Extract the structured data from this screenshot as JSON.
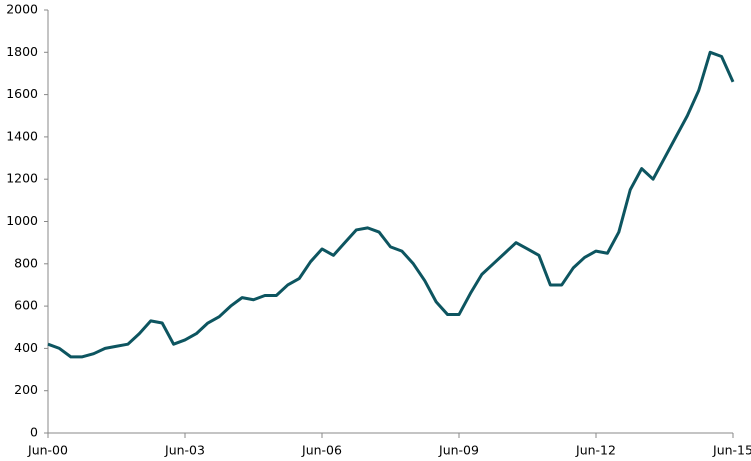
{
  "chart_data": {
    "type": "line",
    "x": [
      "Jun-00",
      "Sep-00",
      "Dec-00",
      "Mar-01",
      "Jun-01",
      "Sep-01",
      "Dec-01",
      "Mar-02",
      "Jun-02",
      "Sep-02",
      "Dec-02",
      "Mar-03",
      "Jun-03",
      "Sep-03",
      "Dec-03",
      "Mar-04",
      "Jun-04",
      "Sep-04",
      "Dec-04",
      "Mar-05",
      "Jun-05",
      "Sep-05",
      "Dec-05",
      "Mar-06",
      "Jun-06",
      "Sep-06",
      "Dec-06",
      "Mar-07",
      "Jun-07",
      "Sep-07",
      "Dec-07",
      "Mar-08",
      "Jun-08",
      "Sep-08",
      "Dec-08",
      "Mar-09",
      "Jun-09",
      "Sep-09",
      "Dec-09",
      "Mar-10",
      "Jun-10",
      "Sep-10",
      "Dec-10",
      "Mar-11",
      "Jun-11",
      "Sep-11",
      "Dec-11",
      "Mar-12",
      "Jun-12",
      "Sep-12",
      "Dec-12",
      "Mar-13",
      "Jun-13",
      "Sep-13",
      "Dec-13",
      "Mar-14",
      "Jun-14",
      "Sep-14",
      "Dec-14",
      "Mar-15",
      "Jun-15"
    ],
    "series": [
      {
        "color": "#0d5560",
        "values": [
          420,
          400,
          360,
          360,
          375,
          400,
          410,
          420,
          470,
          530,
          520,
          420,
          440,
          470,
          520,
          550,
          600,
          640,
          630,
          650,
          650,
          700,
          730,
          810,
          870,
          840,
          900,
          960,
          970,
          950,
          880,
          860,
          800,
          720,
          620,
          560,
          560,
          660,
          750,
          800,
          850,
          900,
          870,
          840,
          700,
          700,
          780,
          830,
          860,
          850,
          950,
          1150,
          1250,
          1200,
          1300,
          1400,
          1500,
          1620,
          1800,
          1780,
          1660
        ]
      }
    ],
    "ylim": [
      0,
      2000
    ],
    "yticks": [
      0,
      200,
      400,
      600,
      800,
      1000,
      1200,
      1400,
      1600,
      1800,
      2000
    ],
    "xticks": [
      "Jun-00",
      "Jun-03",
      "Jun-06",
      "Jun-09",
      "Jun-12",
      "Jun-15"
    ]
  }
}
